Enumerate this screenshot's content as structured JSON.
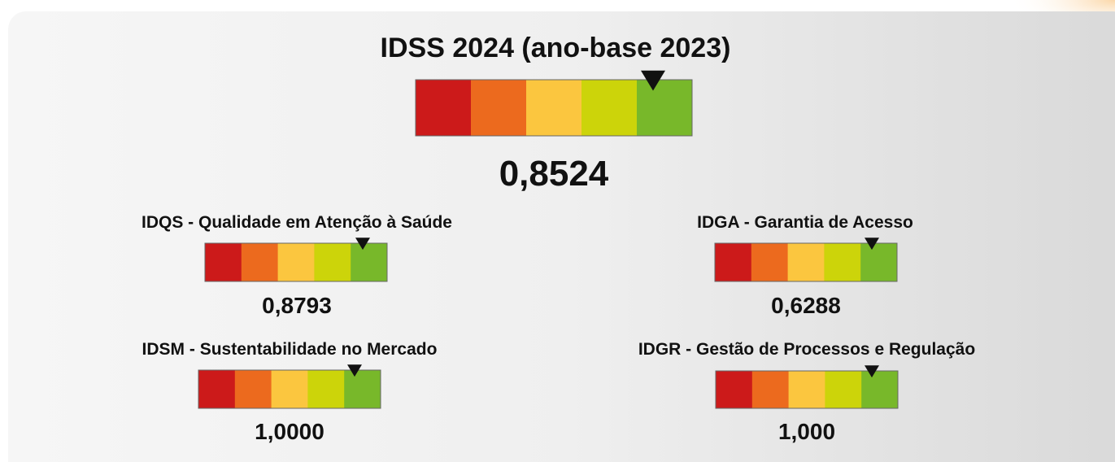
{
  "title": "IDSS 2024 (ano-base 2023)",
  "main_value": "0,8524",
  "indicators": [
    {
      "label": "IDQS - Qualidade em Atenção à Saúde",
      "value": "0,8793"
    },
    {
      "label": "IDGA - Garantia de Acesso",
      "value": "0,6288"
    },
    {
      "label": "IDSM - Sustentabilidade no Mercado",
      "value": "1,0000"
    },
    {
      "label": "IDGR - Gestão de Processos e Regulação",
      "value": "1,000"
    }
  ]
}
